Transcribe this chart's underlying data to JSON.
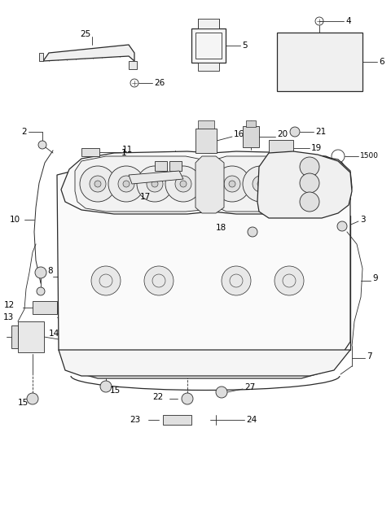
{
  "bg_color": "#ffffff",
  "line_color": "#2a2a2a",
  "fig_width": 4.8,
  "fig_height": 6.28,
  "dpi": 100,
  "label_fs": 7.5,
  "lw_main": 0.9,
  "lw_thin": 0.6
}
